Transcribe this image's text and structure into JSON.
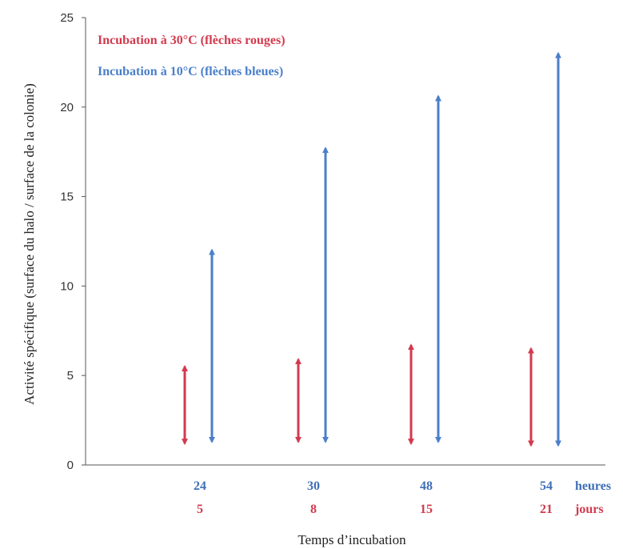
{
  "chart_data": {
    "type": "range",
    "ylabel": "Activité spécifique (surface du halo / surface de la colonie)",
    "xlabel": "Temps d’incubation",
    "ylim": [
      0,
      25
    ],
    "yticks": [
      "0",
      "5",
      "10",
      "15",
      "20",
      "25"
    ],
    "categories_hours": [
      "24",
      "30",
      "48",
      "54"
    ],
    "categories_days": [
      "5",
      "8",
      "15",
      "21"
    ],
    "unit_hours": "heures",
    "unit_days": "jours",
    "series": [
      {
        "name": "Incubation à  30°C (flèches rouges)",
        "color": "#d23a4e",
        "ranges": [
          [
            1.2,
            5.5
          ],
          [
            1.3,
            5.9
          ],
          [
            1.2,
            6.7
          ],
          [
            1.1,
            6.5
          ]
        ]
      },
      {
        "name": "Incubation à  10°C (flèches bleues)",
        "color": "#4a7fc9",
        "ranges": [
          [
            1.3,
            12.0
          ],
          [
            1.3,
            17.7
          ],
          [
            1.3,
            20.6
          ],
          [
            1.1,
            23.0
          ]
        ]
      }
    ]
  }
}
